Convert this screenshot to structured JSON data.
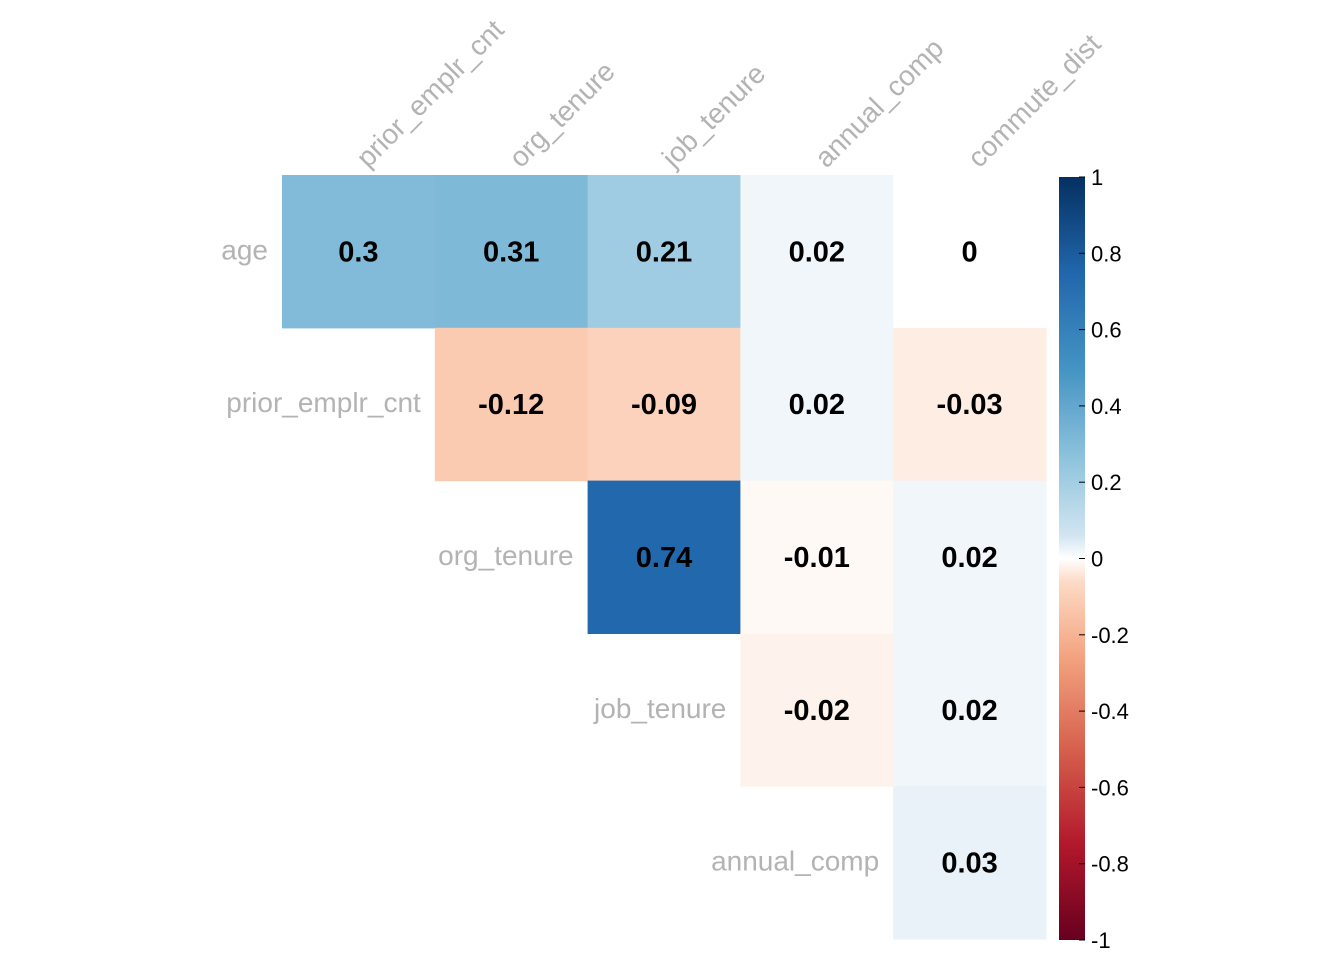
{
  "chart_data": {
    "type": "heatmap",
    "title": "",
    "layout": "upper-triangle correlation matrix",
    "row_labels": [
      "age",
      "prior_emplr_cnt",
      "org_tenure",
      "job_tenure",
      "annual_comp"
    ],
    "col_labels": [
      "prior_emplr_cnt",
      "org_tenure",
      "job_tenure",
      "annual_comp",
      "commute_dist"
    ],
    "cells": [
      {
        "row": "age",
        "col": "prior_emplr_cnt",
        "value": 0.3,
        "label": "0.3"
      },
      {
        "row": "age",
        "col": "org_tenure",
        "value": 0.31,
        "label": "0.31"
      },
      {
        "row": "age",
        "col": "job_tenure",
        "value": 0.21,
        "label": "0.21"
      },
      {
        "row": "age",
        "col": "annual_comp",
        "value": 0.02,
        "label": "0.02"
      },
      {
        "row": "age",
        "col": "commute_dist",
        "value": 0,
        "label": "0"
      },
      {
        "row": "prior_emplr_cnt",
        "col": "org_tenure",
        "value": -0.12,
        "label": "-0.12"
      },
      {
        "row": "prior_emplr_cnt",
        "col": "job_tenure",
        "value": -0.09,
        "label": "-0.09"
      },
      {
        "row": "prior_emplr_cnt",
        "col": "annual_comp",
        "value": 0.02,
        "label": "0.02"
      },
      {
        "row": "prior_emplr_cnt",
        "col": "commute_dist",
        "value": -0.03,
        "label": "-0.03"
      },
      {
        "row": "org_tenure",
        "col": "job_tenure",
        "value": 0.74,
        "label": "0.74"
      },
      {
        "row": "org_tenure",
        "col": "annual_comp",
        "value": -0.01,
        "label": "-0.01"
      },
      {
        "row": "org_tenure",
        "col": "commute_dist",
        "value": 0.02,
        "label": "0.02"
      },
      {
        "row": "job_tenure",
        "col": "annual_comp",
        "value": -0.02,
        "label": "-0.02"
      },
      {
        "row": "job_tenure",
        "col": "commute_dist",
        "value": 0.02,
        "label": "0.02"
      },
      {
        "row": "annual_comp",
        "col": "commute_dist",
        "value": 0.03,
        "label": "0.03"
      }
    ],
    "color_scale": {
      "range": [
        -1,
        1
      ],
      "low_color": "#67001F",
      "mid_color": "#FFFFFF",
      "high_color": "#053061",
      "stops": [
        {
          "value": -1,
          "color": "#67001F"
        },
        {
          "value": -0.75,
          "color": "#B2182B"
        },
        {
          "value": -0.5,
          "color": "#D6604D"
        },
        {
          "value": -0.25,
          "color": "#F4A582"
        },
        {
          "value": -0.06,
          "color": "#FDDBC7"
        },
        {
          "value": 0,
          "color": "#FFFFFF"
        },
        {
          "value": 0.06,
          "color": "#D1E5F0"
        },
        {
          "value": 0.25,
          "color": "#92C5DE"
        },
        {
          "value": 0.5,
          "color": "#4393C3"
        },
        {
          "value": 0.75,
          "color": "#2166AC"
        },
        {
          "value": 1,
          "color": "#053061"
        }
      ],
      "ticks": [
        "1",
        "0.8",
        "0.6",
        "0.4",
        "0.2",
        "0",
        "-0.2",
        "-0.4",
        "-0.6",
        "-0.8",
        "-1"
      ]
    },
    "legend_placement": "right",
    "label_color": "#b3b3b3"
  }
}
